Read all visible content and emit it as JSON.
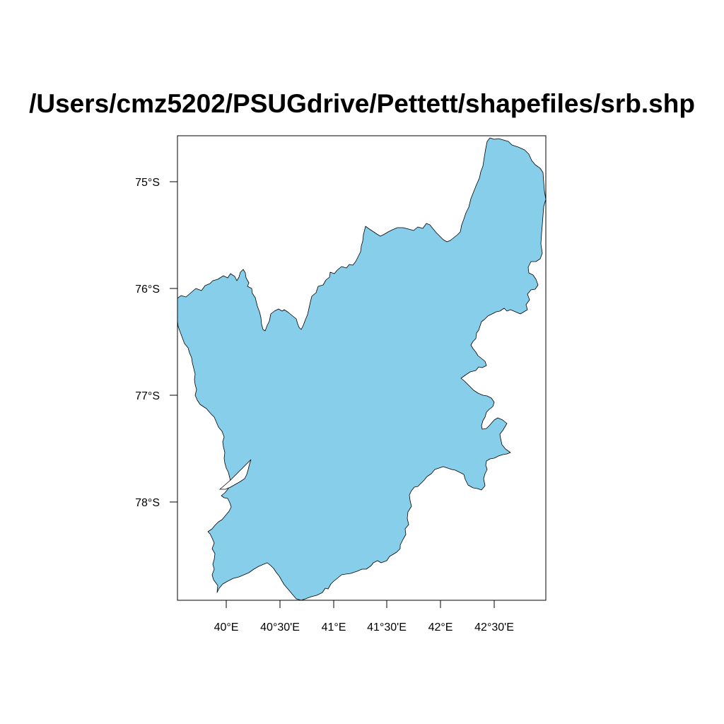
{
  "title": "/Users/cmz5202/PSUGdrive/Pettett/shapefiles/srb.shp",
  "colors": {
    "fill": "#87ceeb",
    "outline": "#000000",
    "frame": "#000000"
  },
  "map": {
    "type": "shapefile-outline",
    "x_ticks": [
      "40°E",
      "40°30'E",
      "41°E",
      "41°30'E",
      "42°E",
      "42°30'E"
    ],
    "y_ticks": [
      "75°S",
      "76°S",
      "77°S",
      "78°S"
    ]
  }
}
